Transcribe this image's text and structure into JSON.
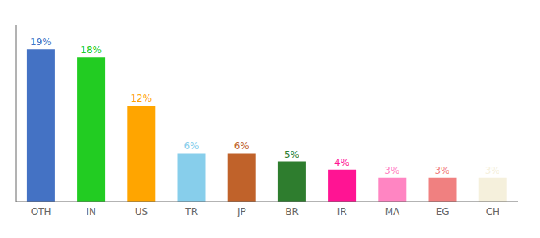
{
  "chart_data": {
    "type": "bar",
    "categories": [
      "OTH",
      "IN",
      "US",
      "TR",
      "JP",
      "BR",
      "IR",
      "MA",
      "EG",
      "CH"
    ],
    "values": [
      19,
      18,
      12,
      6,
      6,
      5,
      4,
      3,
      3,
      3
    ],
    "value_labels": [
      "19%",
      "18%",
      "12%",
      "6%",
      "6%",
      "5%",
      "4%",
      "3%",
      "3%",
      "3%"
    ],
    "colors": [
      "#4472C4",
      "#22CC22",
      "#FFA500",
      "#87CEEB",
      "#C0622A",
      "#2E7D2E",
      "#FF1493",
      "#FF85C2",
      "#F08080",
      "#F5F0DC"
    ],
    "ylim": [
      0,
      22
    ],
    "yticks": [],
    "tick_labels": "x",
    "data_labels": true,
    "grid": false
  }
}
